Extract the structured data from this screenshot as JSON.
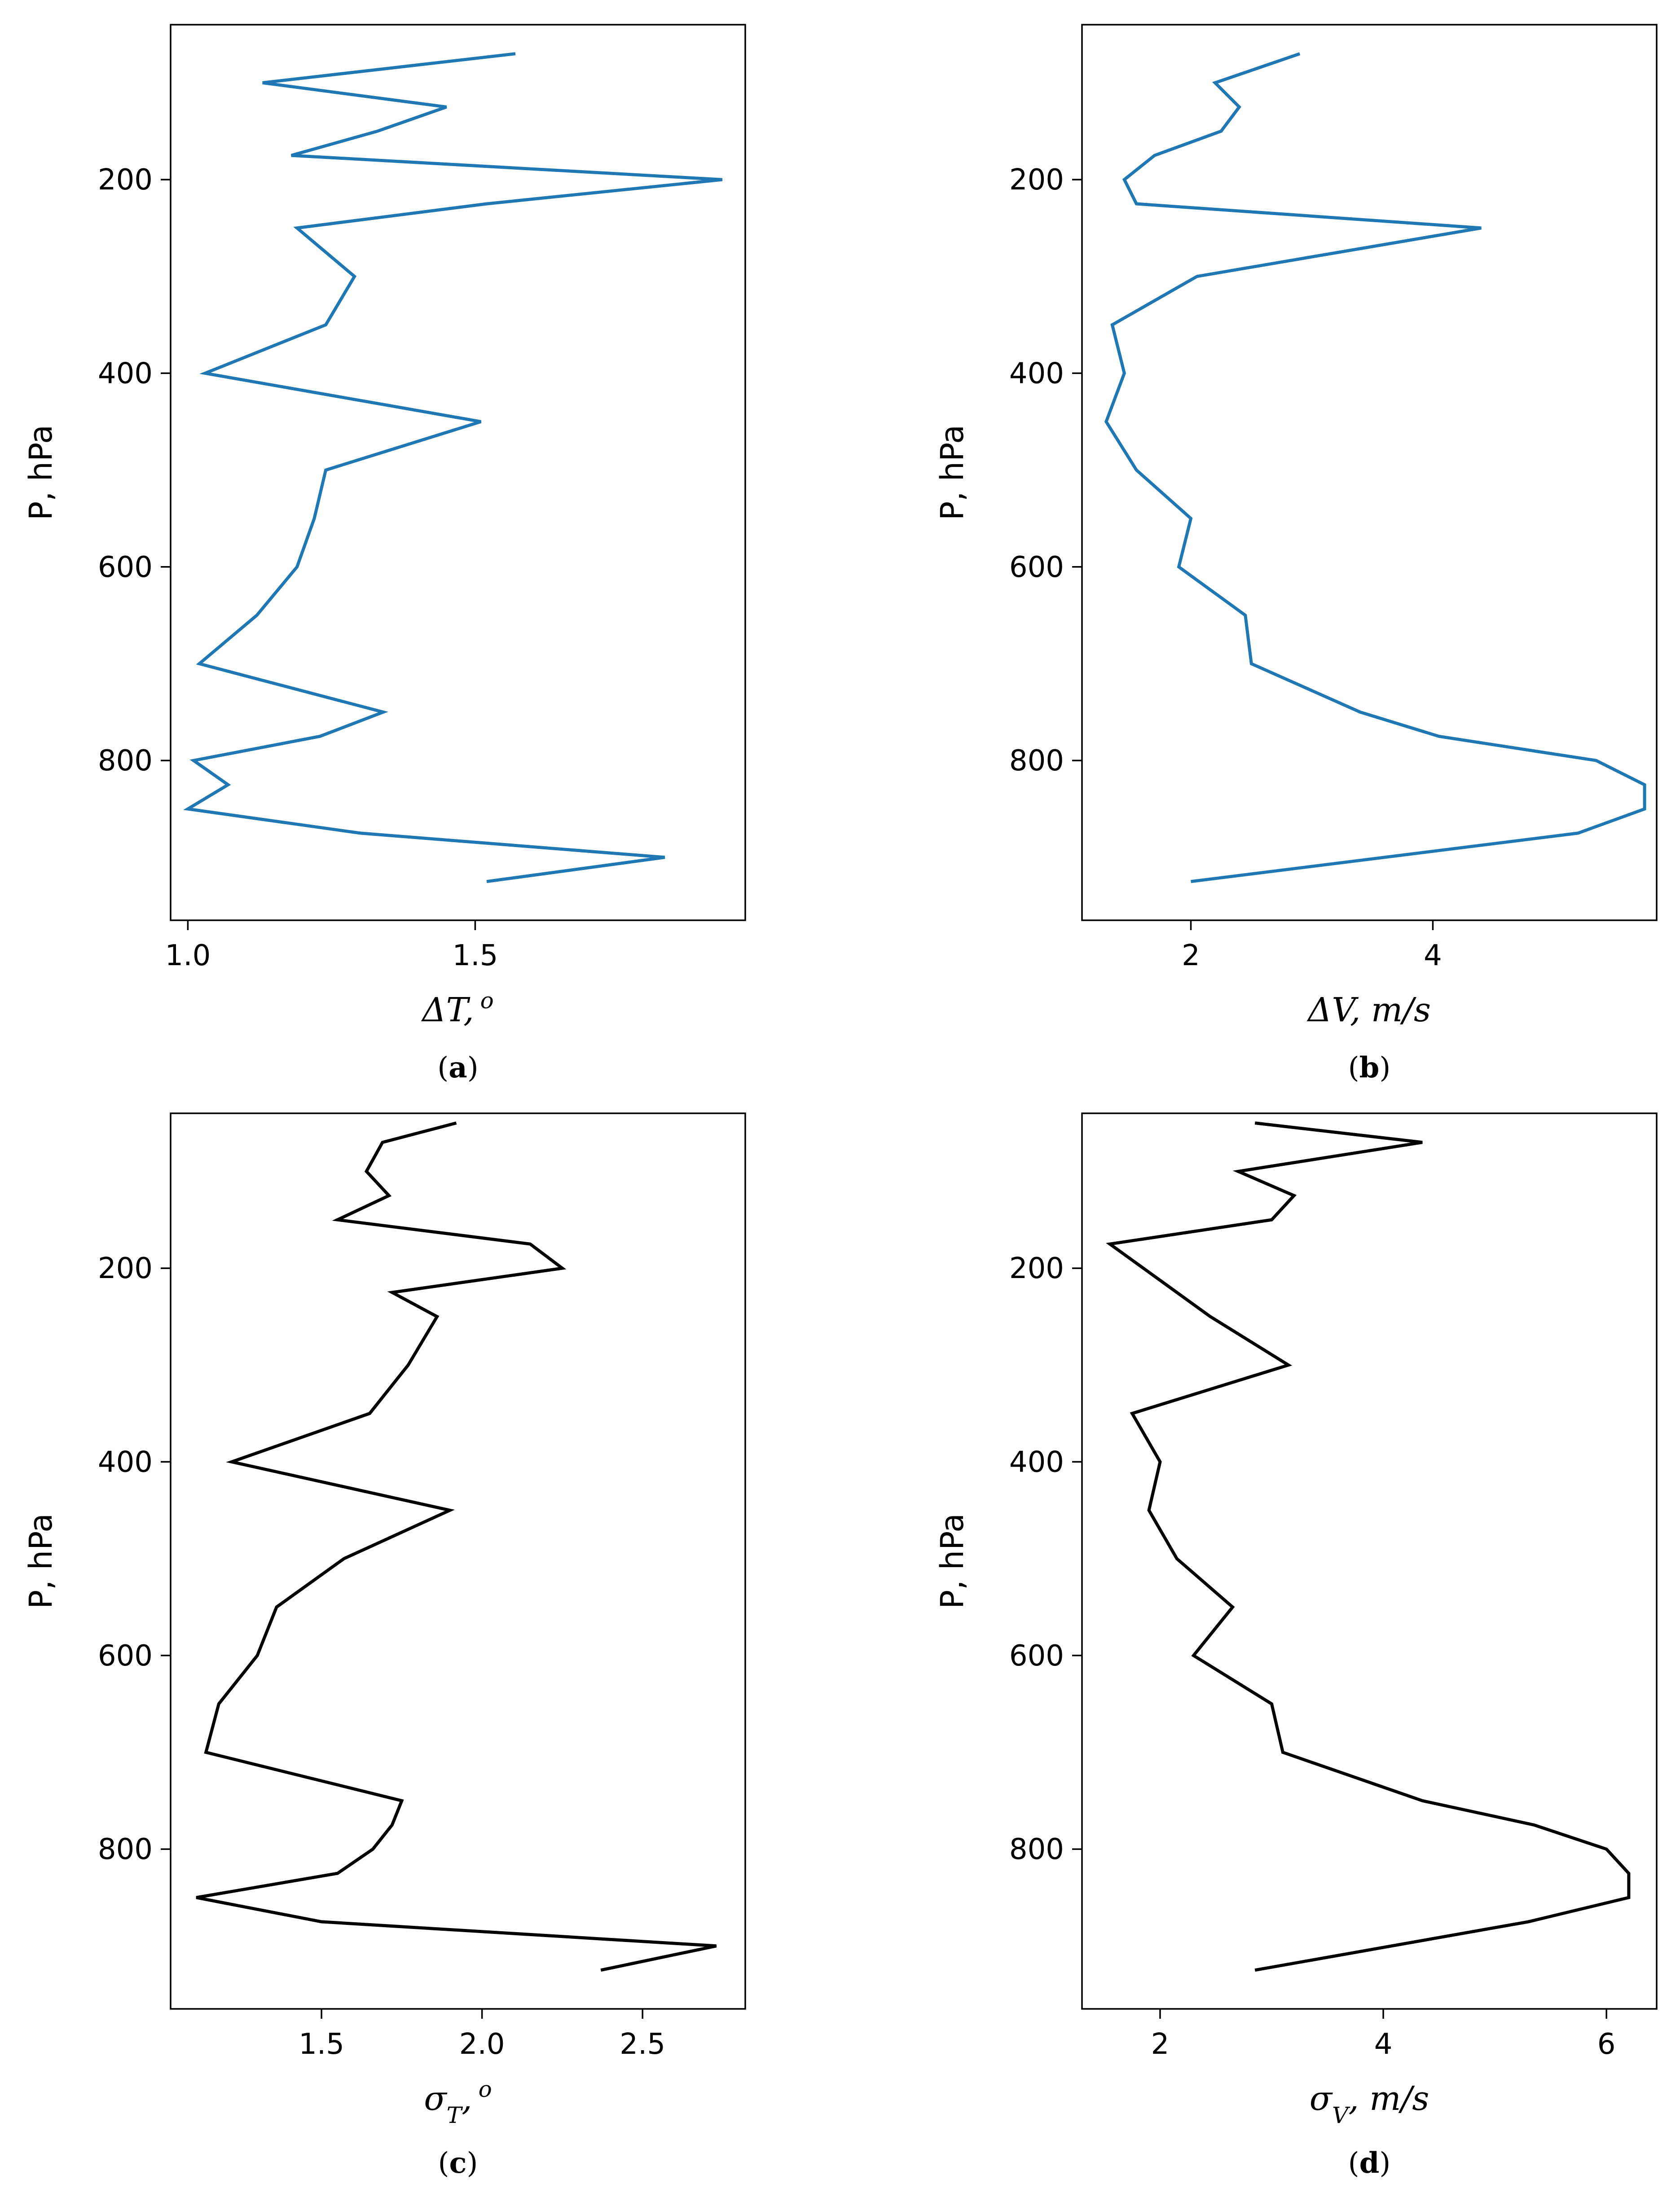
{
  "chart_data": [
    {
      "type": "line",
      "panel": "a",
      "caption": "a",
      "xlabel": "ΔT, o",
      "xlabel_main": "ΔT,",
      "xlabel_sup": "o",
      "ylabel": "P, hPa",
      "xlim": [
        0.97,
        1.97
      ],
      "ylim": [
        965,
        40
      ],
      "xticks": [
        1.0,
        1.5
      ],
      "xtick_labels": [
        "1.0",
        "1.5"
      ],
      "yticks": [
        200,
        400,
        600,
        800
      ],
      "ytick_labels": [
        "200",
        "400",
        "600",
        "800"
      ],
      "color": "#1f77b4",
      "series": [
        {
          "x": [
            1.57,
            1.13,
            1.45,
            1.33,
            1.18,
            1.93,
            1.52,
            1.19,
            1.29,
            1.24,
            1.03,
            1.51,
            1.24,
            1.22,
            1.19,
            1.12,
            1.02,
            1.34,
            1.23,
            1.01,
            1.07,
            1.0,
            1.3,
            1.83,
            1.52
          ],
          "y": [
            70,
            100,
            125,
            150,
            175,
            200,
            225,
            250,
            300,
            350,
            400,
            450,
            500,
            550,
            600,
            650,
            700,
            750,
            775,
            800,
            825,
            850,
            875,
            900,
            925
          ]
        }
      ]
    },
    {
      "type": "line",
      "panel": "b",
      "caption": "b",
      "xlabel": "ΔV, m/s",
      "xlabel_main": "ΔV, m/s",
      "ylabel": "P, hPa",
      "xlim": [
        1.1,
        5.85
      ],
      "ylim": [
        965,
        40
      ],
      "xticks": [
        2,
        4
      ],
      "xtick_labels": [
        "2",
        "4"
      ],
      "yticks": [
        200,
        400,
        600,
        800
      ],
      "ytick_labels": [
        "200",
        "400",
        "600",
        "800"
      ],
      "color": "#1f77b4",
      "series": [
        {
          "x": [
            2.9,
            2.2,
            2.4,
            2.25,
            1.7,
            1.45,
            1.55,
            4.4,
            2.05,
            1.35,
            1.45,
            1.3,
            1.55,
            2.0,
            1.9,
            2.45,
            2.5,
            3.4,
            4.05,
            5.35,
            5.75,
            5.75,
            5.2,
            2.0
          ],
          "y": [
            70,
            100,
            125,
            150,
            175,
            200,
            225,
            250,
            300,
            350,
            400,
            450,
            500,
            550,
            600,
            650,
            700,
            750,
            775,
            800,
            825,
            850,
            875,
            925
          ]
        }
      ]
    },
    {
      "type": "line",
      "panel": "c",
      "caption": "c",
      "xlabel": "σT, o",
      "xlabel_main": "σ",
      "xlabel_sub": "T",
      "xlabel_tail": ",",
      "xlabel_sup": "o",
      "ylabel": "P, hPa",
      "xlim": [
        1.03,
        2.82
      ],
      "ylim": [
        965,
        40
      ],
      "xticks": [
        1.5,
        2.0,
        2.5
      ],
      "xtick_labels": [
        "1.5",
        "2.0",
        "2.5"
      ],
      "yticks": [
        200,
        400,
        600,
        800
      ],
      "ytick_labels": [
        "200",
        "400",
        "600",
        "800"
      ],
      "color": "#000000",
      "series": [
        {
          "x": [
            1.92,
            1.69,
            1.64,
            1.71,
            1.55,
            2.15,
            2.25,
            1.72,
            1.86,
            1.77,
            1.65,
            1.22,
            1.9,
            1.57,
            1.36,
            1.3,
            1.18,
            1.14,
            1.75,
            1.72,
            1.66,
            1.55,
            1.11,
            1.5,
            2.73,
            2.37
          ],
          "y": [
            50,
            70,
            100,
            125,
            150,
            175,
            200,
            225,
            250,
            300,
            350,
            400,
            450,
            500,
            550,
            600,
            650,
            700,
            750,
            775,
            800,
            825,
            850,
            875,
            900,
            925
          ]
        }
      ]
    },
    {
      "type": "line",
      "panel": "d",
      "caption": "d",
      "xlabel": "σV, m/s",
      "xlabel_main": "σ",
      "xlabel_sub": "V",
      "xlabel_tail": ", m/s",
      "ylabel": "P, hPa",
      "xlim": [
        1.3,
        6.45
      ],
      "ylim": [
        965,
        40
      ],
      "xticks": [
        2,
        4,
        6
      ],
      "xtick_labels": [
        "2",
        "4",
        "6"
      ],
      "yticks": [
        200,
        400,
        600,
        800
      ],
      "ytick_labels": [
        "200",
        "400",
        "600",
        "800"
      ],
      "color": "#000000",
      "series": [
        {
          "x": [
            2.85,
            4.35,
            2.7,
            3.2,
            3.0,
            1.55,
            1.85,
            2.15,
            2.45,
            3.15,
            1.75,
            2.0,
            1.9,
            2.15,
            2.65,
            2.3,
            3.0,
            3.1,
            4.35,
            5.35,
            6.0,
            6.2,
            6.2,
            5.3,
            2.85
          ],
          "y": [
            50,
            70,
            100,
            125,
            150,
            175,
            200,
            225,
            250,
            300,
            350,
            400,
            450,
            500,
            550,
            600,
            650,
            700,
            750,
            775,
            800,
            825,
            850,
            875,
            925
          ]
        }
      ]
    }
  ]
}
